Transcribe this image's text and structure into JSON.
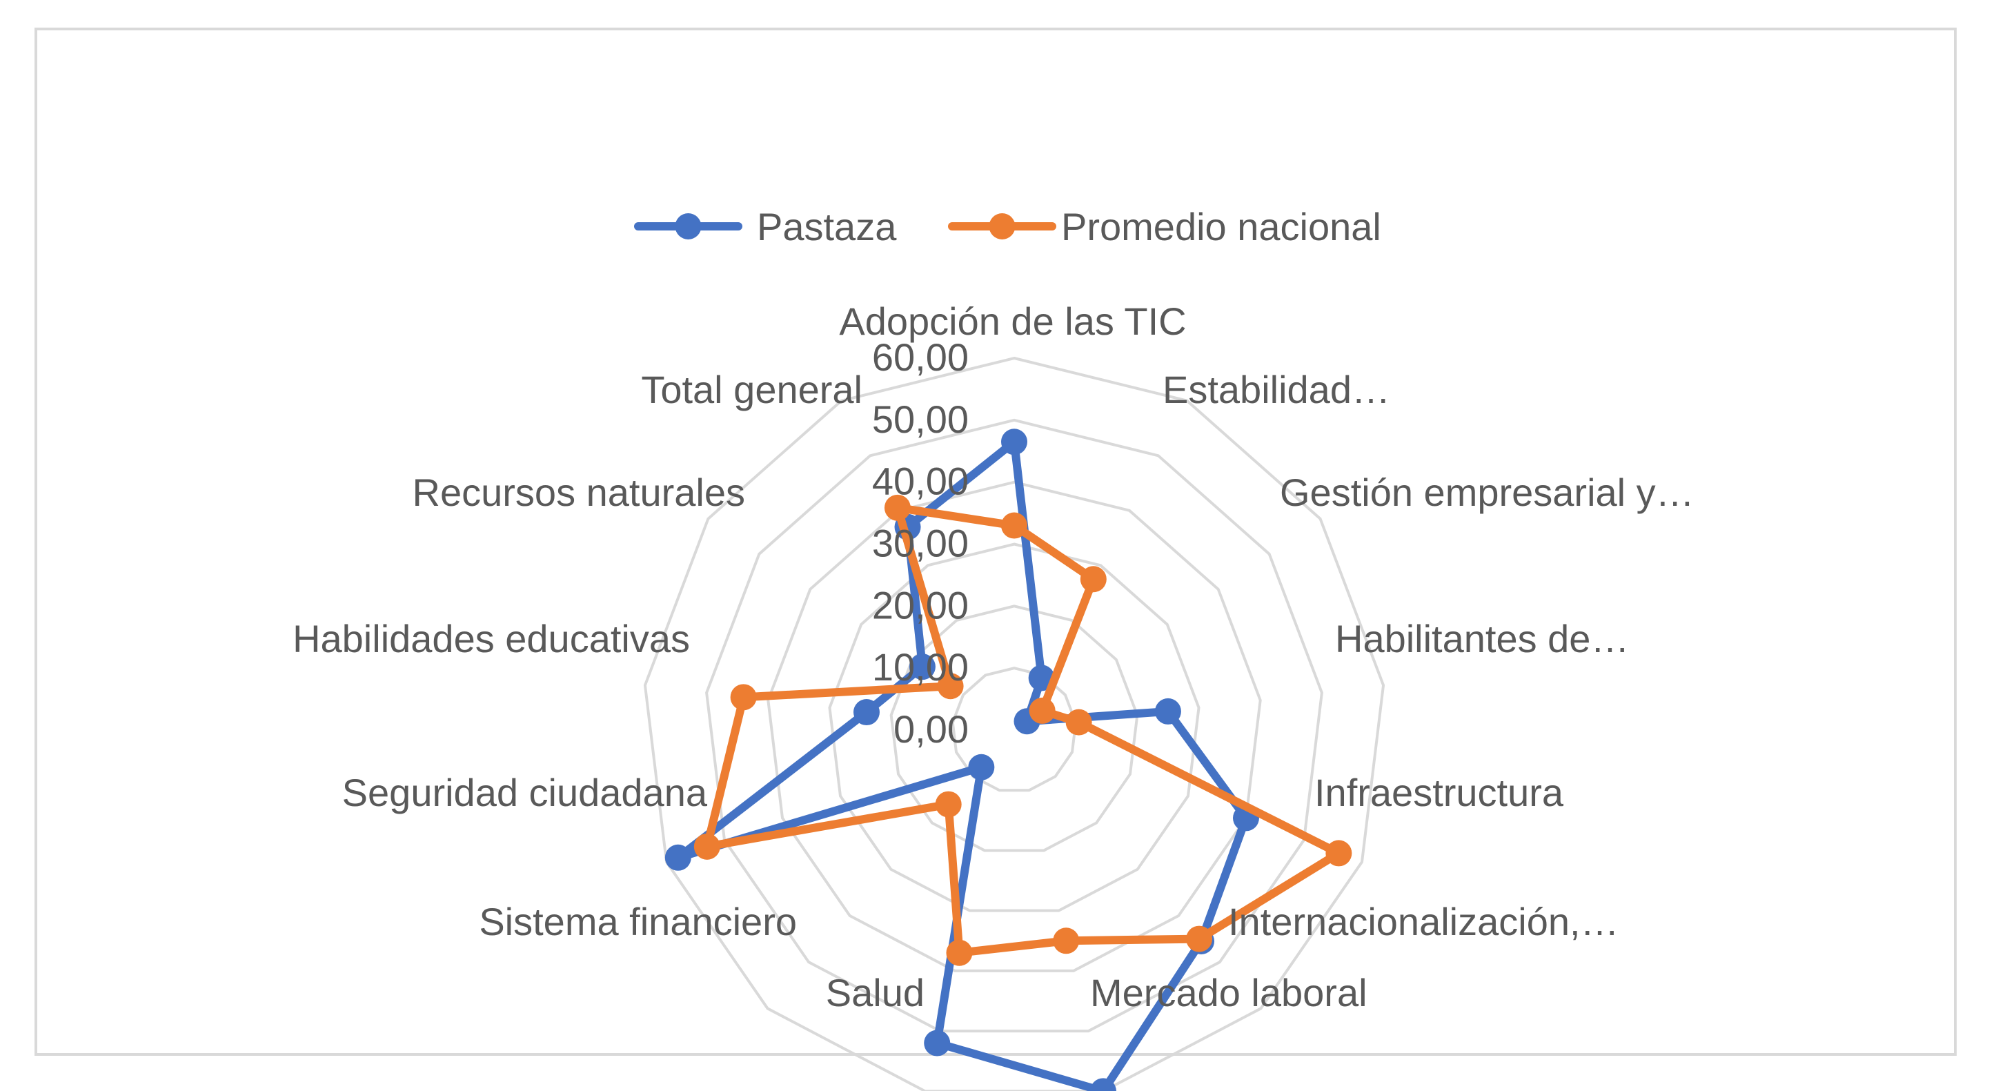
{
  "chart_data": {
    "type": "radar",
    "categories": [
      "Adopción de las TIC",
      "Estabilidad…",
      "Gestión empresarial y…",
      "Habilitantes de…",
      "Infraestructura",
      "Internacionalización,…",
      "Mercado laboral",
      "Salud",
      "Sistema financiero",
      "Seguridad ciudadana",
      "Habilidades educativas",
      "Recursos naturales",
      "Total general"
    ],
    "series": [
      {
        "name": "Pastaza",
        "color": "#4472C4",
        "values": [
          46.5,
          9.5,
          2.5,
          25.0,
          40.0,
          45.5,
          60.0,
          52.0,
          8.0,
          58.0,
          24.0,
          18.0,
          37.0
        ]
      },
      {
        "name": "Promedio nacional",
        "color": "#ED7D31",
        "values": [
          33.0,
          27.5,
          5.5,
          10.5,
          56.0,
          45.0,
          35.0,
          37.0,
          16.0,
          53.0,
          44.0,
          12.5,
          40.5
        ]
      }
    ],
    "rlim": [
      0,
      60
    ],
    "ticks": [
      "0,00",
      "10,00",
      "20,00",
      "30,00",
      "40,00",
      "50,00",
      "60,00"
    ],
    "grid": true,
    "legend": "top",
    "title": ""
  }
}
